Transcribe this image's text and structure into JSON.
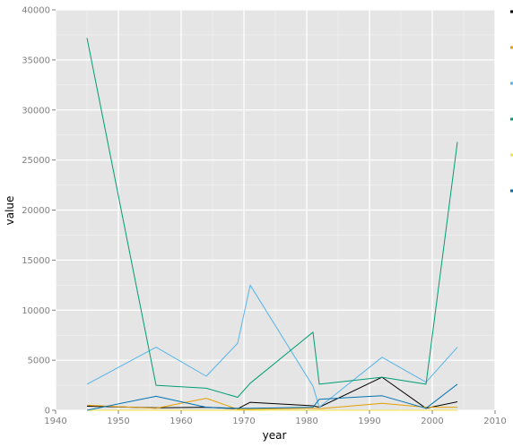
{
  "chart_data": {
    "type": "line",
    "xlabel": "year",
    "ylabel": "value",
    "xlim": [
      1940,
      2010
    ],
    "ylim": [
      0,
      40000
    ],
    "x_ticks": [
      1940,
      1950,
      1960,
      1970,
      1980,
      1990,
      2000,
      2010
    ],
    "y_ticks": [
      0,
      5000,
      10000,
      15000,
      20000,
      25000,
      30000,
      35000,
      40000
    ],
    "grid": true,
    "legend_position": "right",
    "legend_labels_visible": false,
    "panel_background": "#e5e5e5",
    "grid_color": "#ffffff",
    "series": [
      {
        "color": "#000000",
        "points": [
          [
            1945,
            400
          ],
          [
            1956,
            250
          ],
          [
            1964,
            300
          ],
          [
            1969,
            150
          ],
          [
            1971,
            800
          ],
          [
            1981,
            450
          ],
          [
            1982,
            300
          ],
          [
            1992,
            3300
          ],
          [
            1999,
            200
          ],
          [
            2004,
            850
          ]
        ]
      },
      {
        "color": "#e69f00",
        "points": [
          [
            1945,
            500
          ],
          [
            1956,
            200
          ],
          [
            1964,
            1200
          ],
          [
            1969,
            100
          ],
          [
            1971,
            100
          ],
          [
            1981,
            200
          ],
          [
            1982,
            150
          ],
          [
            1992,
            700
          ],
          [
            1999,
            300
          ],
          [
            2004,
            300
          ]
        ]
      },
      {
        "color": "#56b4e9",
        "points": [
          [
            1945,
            2600
          ],
          [
            1956,
            6300
          ],
          [
            1964,
            3400
          ],
          [
            1969,
            6700
          ],
          [
            1971,
            12500
          ],
          [
            1981,
            2400
          ],
          [
            1982,
            300
          ],
          [
            1992,
            5300
          ],
          [
            1999,
            2800
          ],
          [
            2004,
            6300
          ]
        ]
      },
      {
        "color": "#009e73",
        "points": [
          [
            1945,
            37200
          ],
          [
            1956,
            2500
          ],
          [
            1964,
            2200
          ],
          [
            1969,
            1300
          ],
          [
            1971,
            2700
          ],
          [
            1981,
            7800
          ],
          [
            1982,
            2600
          ],
          [
            1992,
            3300
          ],
          [
            1999,
            2600
          ],
          [
            2004,
            26800
          ]
        ]
      },
      {
        "color": "#f0e442",
        "points": [
          [
            1945,
            0
          ],
          [
            1956,
            0
          ],
          [
            1964,
            0
          ],
          [
            1969,
            0
          ],
          [
            1971,
            0
          ],
          [
            1981,
            0
          ],
          [
            1982,
            0
          ],
          [
            1992,
            0
          ],
          [
            1999,
            0
          ],
          [
            2004,
            0
          ]
        ]
      },
      {
        "color": "#0072b2",
        "points": [
          [
            1945,
            0
          ],
          [
            1956,
            1400
          ],
          [
            1964,
            300
          ],
          [
            1969,
            200
          ],
          [
            1971,
            200
          ],
          [
            1981,
            300
          ],
          [
            1982,
            1100
          ],
          [
            1992,
            1450
          ],
          [
            1999,
            200
          ],
          [
            2004,
            2600
          ]
        ]
      }
    ]
  }
}
